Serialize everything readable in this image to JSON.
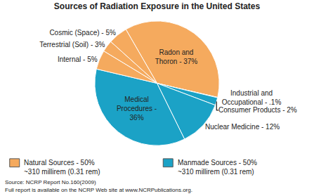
{
  "chart_data": {
    "type": "pie",
    "title": "Sources of Radiation Exposure in the United States",
    "categories": [
      "Radon and Thoron",
      "Industrial and Occupational",
      "Consumer Products",
      "Nuclear Medicine",
      "Medical Procedures",
      "Internal",
      "Terrestrial (Soil)",
      "Cosmic (Space)"
    ],
    "values": [
      37,
      0.1,
      2,
      12,
      36,
      5,
      3,
      5
    ],
    "value_labels": [
      "Radon and Thoron - 37%",
      "Industrial and Occupational - .1%",
      "Consumer Products - 2%",
      "Nuclear Medicine - 12%",
      "Medical Procedures - 36%",
      "Internal - 5%",
      "Terrestrial (Soil) - 3%",
      "Cosmic (Space) - 5%"
    ],
    "colors": [
      "#f5aa5e",
      "#1ba2c6",
      "#1ba2c6",
      "#1ba2c6",
      "#1ba2c6",
      "#f5aa5e",
      "#f5aa5e",
      "#f5aa5e"
    ],
    "data_labels": true,
    "legend_entries": [
      {
        "label": "Natural Sources - 50%",
        "sublabel": "~310 millirem (0.31 rem)",
        "color": "#f5aa5e"
      },
      {
        "label": "Manmade Sources - 50%",
        "sublabel": "~310 millirem (0.31 rem)",
        "color": "#1ba2c6"
      }
    ],
    "notes": [
      "Source: NCRP Report No.160(2009)",
      "Full report is available on the NCRP Web site at www.NCRPublications.org."
    ]
  }
}
